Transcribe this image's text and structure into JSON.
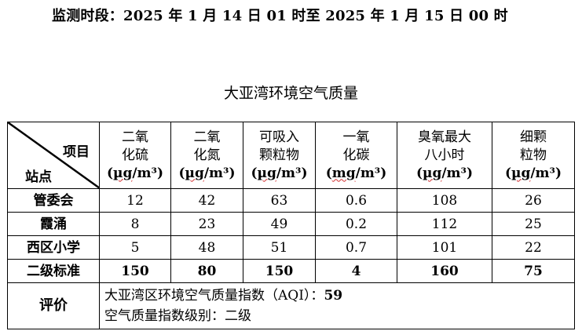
{
  "header": {
    "period": "监测时段：2025 年 1 月 14 日 01 时至 2025 年 1 月 15 日 00 时"
  },
  "title": "大亚湾环境空气质量",
  "table": {
    "corner_item": "项目",
    "corner_station": "站点",
    "columns": [
      {
        "line1": "二氧",
        "line2": "化硫",
        "unit_open": "(",
        "unit_mu": "µg",
        "unit_rest": "/m³)"
      },
      {
        "line1": "二氧",
        "line2": "化氮",
        "unit_open": "(",
        "unit_mu": "µg",
        "unit_rest": "/m³)"
      },
      {
        "line1": "可吸入",
        "line2": "颗粒物",
        "unit_open": "(",
        "unit_mu": "µg",
        "unit_rest": "/m³)"
      },
      {
        "line1": "一氧",
        "line2": "化碳",
        "unit_open": "(",
        "unit_mu": "mg",
        "unit_rest": "/m³)"
      },
      {
        "line1": "臭氧最大",
        "line2": "八小时",
        "unit_open": "(",
        "unit_mu": "µg",
        "unit_rest": "/m³)"
      },
      {
        "line1": "细颗",
        "line2": "粒物",
        "unit_open": "(",
        "unit_mu": "µg",
        "unit_rest": "/m³)"
      }
    ],
    "rows": [
      {
        "station": "管委会",
        "values": [
          "12",
          "42",
          "63",
          "0.6",
          "108",
          "26"
        ]
      },
      {
        "station": "霞涌",
        "values": [
          "8",
          "23",
          "49",
          "0.2",
          "112",
          "25"
        ]
      },
      {
        "station": "西区小学",
        "values": [
          "5",
          "48",
          "51",
          "0.7",
          "101",
          "22"
        ]
      }
    ],
    "standard": {
      "label": "二级标准",
      "values": [
        "150",
        "80",
        "150",
        "4",
        "160",
        "75"
      ]
    },
    "evaluation": {
      "label": "评价",
      "aqi_text": "大亚湾区环境空气质量指数（AQI）：",
      "aqi_value": "59",
      "level_text": "空气质量指数级别：二级"
    }
  }
}
